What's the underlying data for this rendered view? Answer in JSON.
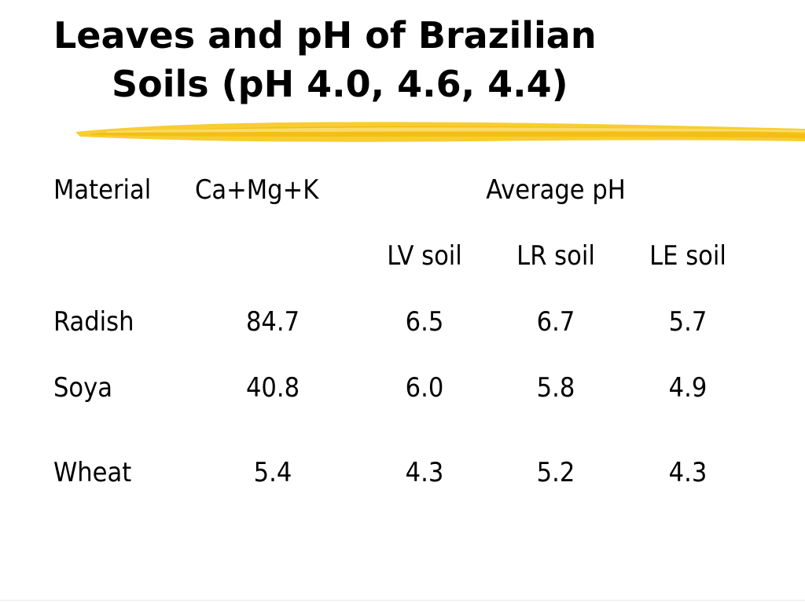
{
  "slide": {
    "title_line1": "Leaves and pH of Brazilian",
    "title_line2": "Soils (pH 4.0, 4.6, 4.4)",
    "accent_color": "#f2c200"
  },
  "table": {
    "header_material": "Material",
    "header_cations": "Ca+Mg+K",
    "header_group": "Average pH",
    "subheaders": [
      "LV soil",
      "LR soil",
      "LE soil"
    ],
    "rows": [
      {
        "material": "Radish",
        "cations": "84.7",
        "lv": "6.5",
        "lr": "6.7",
        "le": "5.7"
      },
      {
        "material": "Soya",
        "cations": "40.8",
        "lv": "6.0",
        "lr": "5.8",
        "le": "4.9"
      },
      {
        "material": "Wheat",
        "cations": "5.4",
        "lv": "4.3",
        "lr": "5.2",
        "le": "4.3"
      }
    ]
  }
}
